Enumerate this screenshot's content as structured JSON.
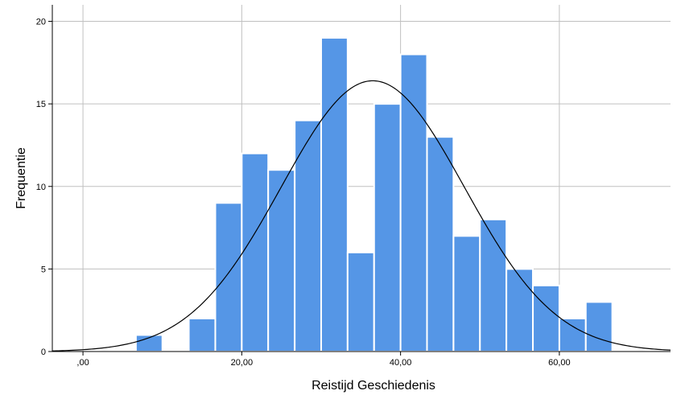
{
  "chart_data": {
    "type": "bar",
    "title": "",
    "xlabel": "Reistijd Geschiedenis",
    "ylabel": "Frequentie",
    "xlim": [
      -3.86,
      74
    ],
    "ylim": [
      0,
      21
    ],
    "grid": true,
    "bin_width": 3.333,
    "x_ticks": [
      {
        "value": 0,
        "label": ",00"
      },
      {
        "value": 20,
        "label": "20,00"
      },
      {
        "value": 40,
        "label": "40,00"
      },
      {
        "value": 60,
        "label": "60,00"
      }
    ],
    "y_ticks": [
      {
        "value": 0,
        "label": "0"
      },
      {
        "value": 5,
        "label": "5"
      },
      {
        "value": 10,
        "label": "10"
      },
      {
        "value": 15,
        "label": "15"
      },
      {
        "value": 20,
        "label": "20"
      }
    ],
    "bins": [
      {
        "start": 6.67,
        "count": 1
      },
      {
        "start": 13.33,
        "count": 2
      },
      {
        "start": 16.67,
        "count": 9
      },
      {
        "start": 20.0,
        "count": 12
      },
      {
        "start": 23.33,
        "count": 11
      },
      {
        "start": 26.67,
        "count": 14
      },
      {
        "start": 30.0,
        "count": 19
      },
      {
        "start": 33.33,
        "count": 6
      },
      {
        "start": 36.67,
        "count": 15
      },
      {
        "start": 40.0,
        "count": 18
      },
      {
        "start": 43.33,
        "count": 13
      },
      {
        "start": 46.67,
        "count": 7
      },
      {
        "start": 50.0,
        "count": 8
      },
      {
        "start": 53.33,
        "count": 5
      },
      {
        "start": 56.67,
        "count": 4
      },
      {
        "start": 60.0,
        "count": 2
      },
      {
        "start": 63.33,
        "count": 3
      }
    ],
    "normal_curve": {
      "mean": 36.5,
      "sd": 11.55,
      "peak": 16.4
    },
    "colors": {
      "bar": "#5596e6",
      "bar_stroke": "#ffffff",
      "grid": "#c0c0c0",
      "curve": "#000000",
      "axis": "#000000"
    }
  }
}
